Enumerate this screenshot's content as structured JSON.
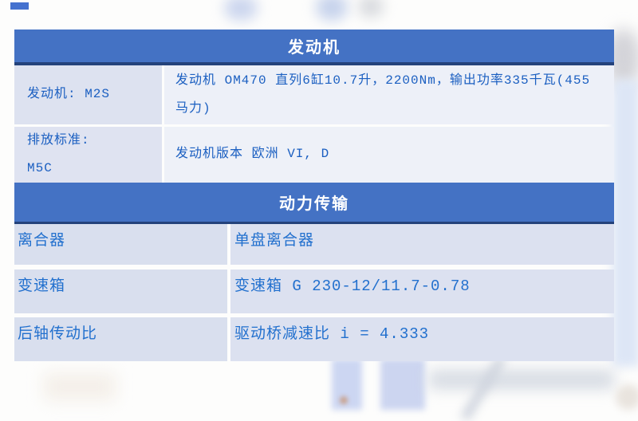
{
  "decor": {
    "corner_square_color": "#4471cf"
  },
  "colors": {
    "section_header_bg": "#4472c4",
    "section_border": "#24427b",
    "section_header_text": "#ffffff",
    "section1_text": "#1b5fc1",
    "section2_text": "#2270ce",
    "cell_bg_left": "#dde2f0",
    "cell_bg_right": "#edf0f8",
    "cell_bg_bottom": "#d9dfee"
  },
  "table": {
    "sections": [
      {
        "header": "发动机",
        "rows": [
          {
            "label": "发动机: M2S",
            "value": "发动机 OM470 直列6缸10.7升，2200Nm，输出功率335千瓦(455马力)"
          },
          {
            "label_line1": "排放标准:",
            "label_line2": "M5C",
            "value": "发动机版本 欧洲 VI, D"
          }
        ]
      },
      {
        "header": "动力传输",
        "rows": [
          {
            "label": "离合器",
            "value": "单盘离合器"
          },
          {
            "label": "变速箱",
            "value": "变速箱 G 230-12/11.7-0.78"
          },
          {
            "label": "后轴传动比",
            "value": "驱动桥减速比 i = 4.333"
          }
        ]
      }
    ]
  }
}
